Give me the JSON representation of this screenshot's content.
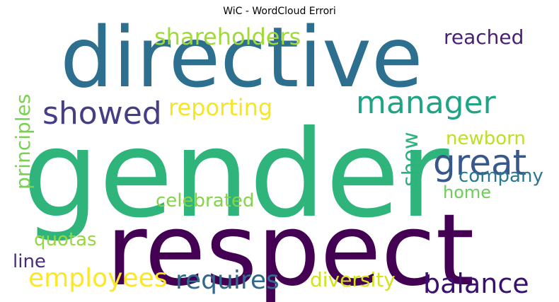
{
  "title": "WiC - WordCloud Errori",
  "words": [
    {
      "text": "directive",
      "color": "#2c6f8e"
    },
    {
      "text": "gender",
      "color": "#2fb47c"
    },
    {
      "text": "respect",
      "color": "#440154"
    },
    {
      "text": "shareholders",
      "color": "#a0da39"
    },
    {
      "text": "reached",
      "color": "#482173"
    },
    {
      "text": "showed",
      "color": "#433e85"
    },
    {
      "text": "reporting",
      "color": "#f6e620"
    },
    {
      "text": "manager",
      "color": "#20a486"
    },
    {
      "text": "great",
      "color": "#38588c"
    },
    {
      "text": "show",
      "color": "#2db27d"
    },
    {
      "text": "newborn",
      "color": "#bddf26"
    },
    {
      "text": "company",
      "color": "#2a788e"
    },
    {
      "text": "home",
      "color": "#6ccd5a"
    },
    {
      "text": "principles",
      "color": "#7ad151"
    },
    {
      "text": "celebrated",
      "color": "#84d44b"
    },
    {
      "text": "quotas",
      "color": "#95d840"
    },
    {
      "text": "line",
      "color": "#472d7b"
    },
    {
      "text": "employees",
      "color": "#fde725"
    },
    {
      "text": "requires",
      "color": "#31688e"
    },
    {
      "text": "diversity",
      "color": "#d2e21b"
    },
    {
      "text": "balance",
      "color": "#3b0f70"
    }
  ]
}
